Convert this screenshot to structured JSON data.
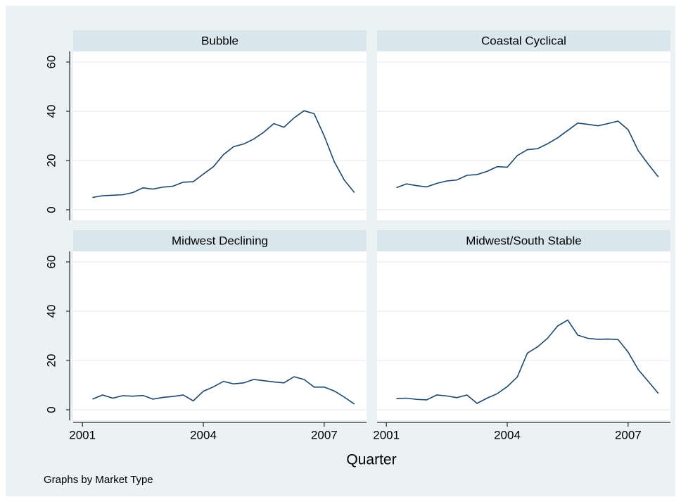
{
  "xlabel": "Quarter",
  "note": "Graphs by Market Type",
  "chart_data": [
    {
      "type": "line",
      "title": "Bubble",
      "color": "#1a476f",
      "x": [
        2001.25,
        2001.5,
        2001.75,
        2002,
        2002.25,
        2002.5,
        2002.75,
        2003,
        2003.25,
        2003.5,
        2003.75,
        2004,
        2004.25,
        2004.5,
        2004.75,
        2005,
        2005.25,
        2005.5,
        2005.75,
        2006,
        2006.25,
        2006.5,
        2006.75,
        2007,
        2007.25,
        2007.5,
        2007.75
      ],
      "values": [
        5,
        5.7,
        5.9,
        6.1,
        7,
        8.9,
        8.4,
        9.2,
        9.6,
        11.2,
        11.4,
        14.5,
        17.5,
        22.4,
        25.6,
        26.7,
        28.7,
        31.5,
        35,
        33.5,
        37.3,
        40.2,
        39,
        30,
        19.5,
        12,
        7
      ],
      "xlim": [
        2000.77,
        2008.05
      ],
      "ylim": [
        -4.3,
        64.3
      ],
      "yticks": [
        0,
        20,
        40,
        60
      ],
      "grid": true
    },
    {
      "type": "line",
      "title": "Coastal Cyclical",
      "color": "#1a476f",
      "x": [
        2001.25,
        2001.5,
        2001.75,
        2002,
        2002.25,
        2002.5,
        2002.75,
        2003,
        2003.25,
        2003.5,
        2003.75,
        2004,
        2004.25,
        2004.5,
        2004.75,
        2005,
        2005.25,
        2005.5,
        2005.75,
        2006,
        2006.25,
        2006.5,
        2006.75,
        2007,
        2007.25,
        2007.5,
        2007.75
      ],
      "values": [
        9,
        10.5,
        9.8,
        9.3,
        10.7,
        11.7,
        12.1,
        14,
        14.3,
        15.6,
        17.5,
        17.3,
        22,
        24.4,
        24.8,
        26.8,
        29.2,
        32.2,
        35.2,
        34.7,
        34.1,
        35,
        36,
        32.5,
        24,
        18.5,
        13.3
      ],
      "xlim": [
        2000.77,
        2008.05
      ],
      "ylim": [
        -4.3,
        64.3
      ],
      "yticks": [
        0,
        20,
        40,
        60
      ],
      "grid": true
    },
    {
      "type": "line",
      "title": "Midwest Declining",
      "color": "#1a476f",
      "x": [
        2001.25,
        2001.5,
        2001.75,
        2002,
        2002.25,
        2002.5,
        2002.75,
        2003,
        2003.25,
        2003.5,
        2003.75,
        2004,
        2004.25,
        2004.5,
        2004.75,
        2005,
        2005.25,
        2005.5,
        2005.75,
        2006,
        2006.25,
        2006.5,
        2006.75,
        2007,
        2007.25,
        2007.5,
        2007.75
      ],
      "values": [
        4.3,
        6,
        4.7,
        5.7,
        5.5,
        5.8,
        4.3,
        5,
        5.4,
        6,
        3.6,
        7.5,
        9.3,
        11.5,
        10.5,
        10.9,
        12.3,
        11.8,
        11.3,
        10.9,
        13.4,
        12.3,
        9.2,
        9.2,
        7.6,
        5.1,
        2.3
      ],
      "xlim": [
        2000.77,
        2008.05
      ],
      "ylim": [
        -4.3,
        64.3
      ],
      "xticks": [
        2001,
        2004,
        2007
      ],
      "yticks": [
        0,
        20,
        40,
        60
      ],
      "grid": true
    },
    {
      "type": "line",
      "title": "Midwest/South Stable",
      "color": "#1a476f",
      "x": [
        2001.25,
        2001.5,
        2001.75,
        2002,
        2002.25,
        2002.5,
        2002.75,
        2003,
        2003.25,
        2003.5,
        2003.75,
        2004,
        2004.25,
        2004.5,
        2004.75,
        2005,
        2005.25,
        2005.5,
        2005.75,
        2006,
        2006.25,
        2006.5,
        2006.75,
        2007,
        2007.25,
        2007.5,
        2007.75
      ],
      "values": [
        4.5,
        4.7,
        4.2,
        4,
        6,
        5.6,
        4.9,
        6,
        2.6,
        4.7,
        6.5,
        9.4,
        13.3,
        23,
        25.5,
        29,
        34,
        36.4,
        30.3,
        29,
        28.6,
        28.7,
        28.5,
        23.4,
        16.3,
        11.5,
        6.6
      ],
      "xlim": [
        2000.77,
        2008.05
      ],
      "ylim": [
        -4.3,
        64.3
      ],
      "xticks": [
        2001,
        2004,
        2007
      ],
      "yticks": [
        0,
        20,
        40,
        60
      ],
      "grid": true
    }
  ]
}
